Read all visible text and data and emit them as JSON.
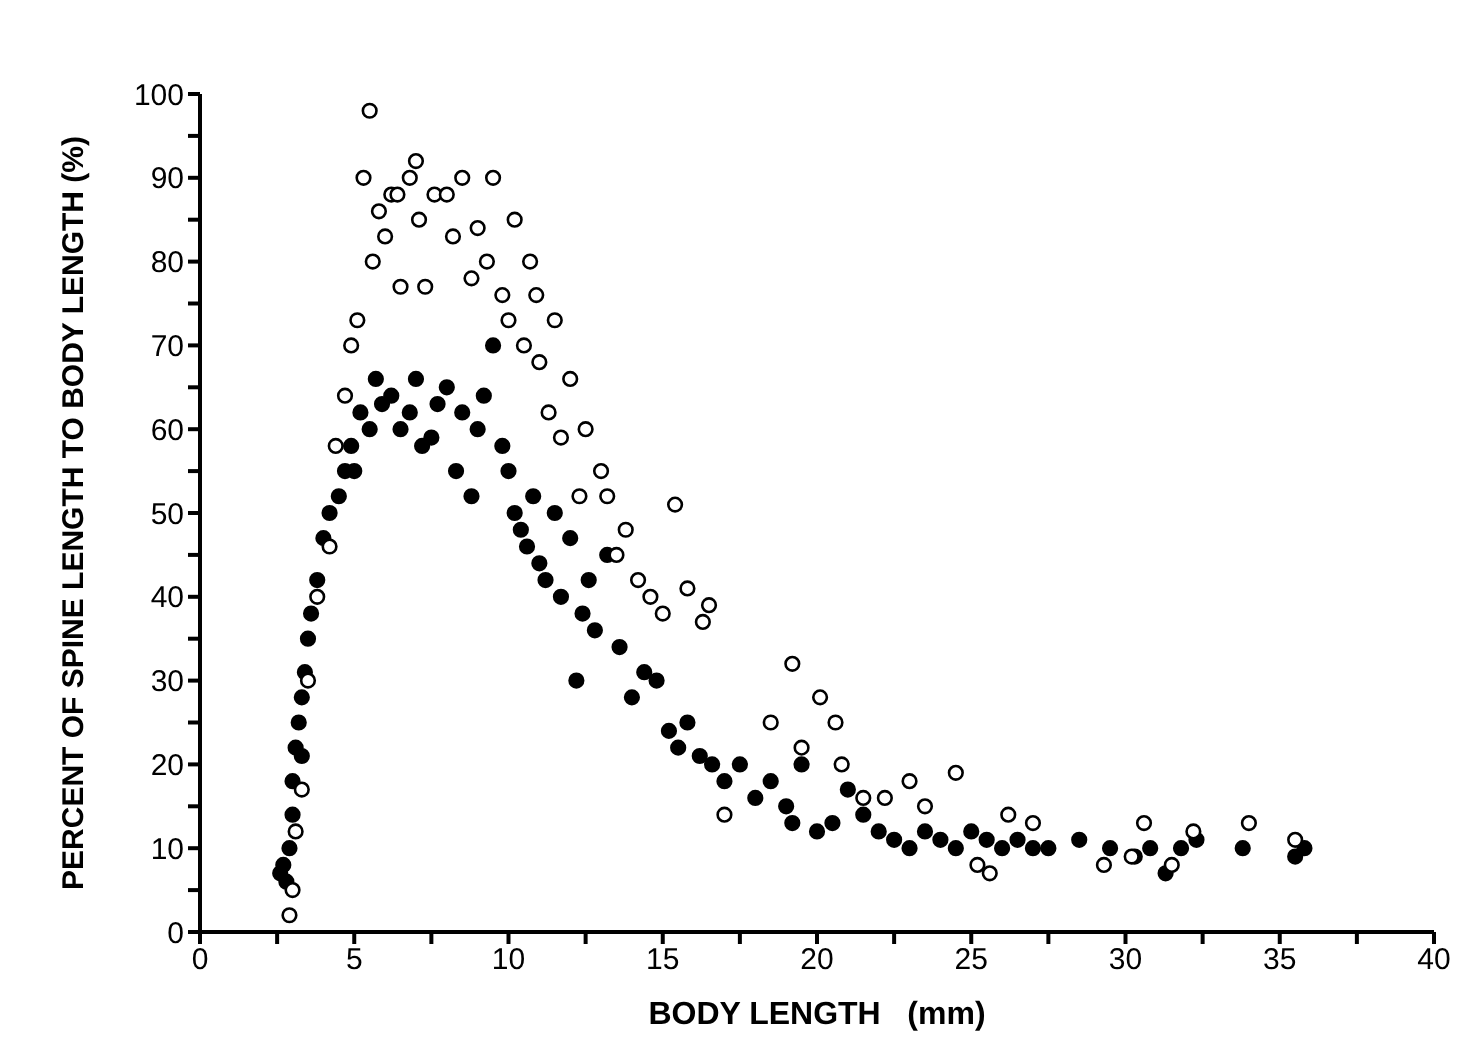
{
  "chart_data": {
    "type": "scatter",
    "xlabel": "BODY LENGTH   (mm)",
    "ylabel": "PERCENT OF SPINE LENGTH TO BODY LENGTH (%)",
    "xlim": [
      0,
      40
    ],
    "ylim": [
      0,
      100
    ],
    "xticks": [
      0,
      {
        "value": 2.5,
        "label": null
      },
      5,
      {
        "value": 7.5,
        "label": null
      },
      10,
      {
        "value": 12.5,
        "label": null
      },
      15,
      {
        "value": 17.5,
        "label": null
      },
      20,
      {
        "value": 22.5,
        "label": null
      },
      25,
      {
        "value": 27.5,
        "label": null
      },
      30,
      {
        "value": 32.5,
        "label": null
      },
      35,
      {
        "value": 37.5,
        "label": null
      },
      40
    ],
    "yticks": [
      0,
      {
        "value": 5,
        "label": null
      },
      10,
      {
        "value": 15,
        "label": null
      },
      20,
      {
        "value": 25,
        "label": null
      },
      30,
      {
        "value": 35,
        "label": null
      },
      40,
      {
        "value": 45,
        "label": null
      },
      50,
      {
        "value": 55,
        "label": null
      },
      60,
      {
        "value": 65,
        "label": null
      },
      70,
      {
        "value": 75,
        "label": null
      },
      80,
      {
        "value": 85,
        "label": null
      },
      90,
      {
        "value": 95,
        "label": null
      },
      100
    ],
    "grid": false,
    "legend": false,
    "marker": "circle",
    "series": [
      {
        "color": "#000000",
        "x": [
          2.6,
          2.7,
          2.8,
          2.9,
          3.0,
          3.0,
          3.1,
          3.2,
          3.3,
          3.3,
          3.4,
          3.5,
          3.6,
          3.8,
          4.0,
          4.2,
          4.5,
          4.7,
          4.9,
          5.0,
          5.2,
          5.5,
          5.7,
          5.9,
          6.2,
          6.5,
          6.8,
          7.0,
          7.2,
          7.5,
          7.7,
          8.0,
          8.3,
          8.5,
          8.8,
          9.0,
          9.2,
          9.5,
          9.8,
          10.0,
          10.2,
          10.4,
          10.6,
          10.8,
          11.0,
          11.2,
          11.5,
          11.7,
          12.0,
          12.2,
          12.4,
          12.6,
          12.8,
          13.2,
          13.6,
          14.0,
          14.4,
          14.8,
          15.2,
          15.5,
          15.8,
          16.2,
          16.6,
          17.0,
          17.5,
          18.0,
          18.5,
          19.0,
          19.2,
          19.5,
          20.0,
          20.5,
          21.0,
          21.5,
          22,
          22.5,
          23,
          23.5,
          24,
          24.5,
          25,
          25.5,
          26,
          26.5,
          27,
          27.5,
          28.5,
          29.5,
          30.3,
          30.8,
          31.3,
          31.8,
          32.3,
          33.8,
          35.5,
          35.8
        ],
        "values": [
          7,
          8,
          6,
          10,
          14,
          18,
          22,
          25,
          21,
          28,
          31,
          35,
          38,
          42,
          47,
          50,
          52,
          55,
          58,
          55,
          62,
          60,
          66,
          63,
          64,
          60,
          62,
          66,
          58,
          59,
          63,
          65,
          55,
          62,
          52,
          60,
          64,
          70,
          58,
          55,
          50,
          48,
          46,
          52,
          44,
          42,
          50,
          40,
          47,
          30,
          38,
          42,
          36,
          45,
          34,
          28,
          31,
          30,
          24,
          22,
          25,
          21,
          20,
          18,
          20,
          16,
          18,
          15,
          13,
          20,
          12,
          13,
          17,
          14,
          12,
          11,
          10,
          12,
          11,
          10,
          12,
          11,
          10,
          11,
          10,
          10,
          11,
          10,
          9,
          10,
          7,
          10,
          11,
          10,
          9,
          10
        ]
      },
      {
        "color": "#ffffff",
        "x": [
          2.9,
          3.0,
          3.1,
          3.3,
          3.5,
          3.8,
          4.2,
          4.4,
          4.7,
          4.9,
          5.1,
          5.3,
          5.5,
          5.6,
          5.8,
          6.0,
          6.2,
          6.4,
          6.5,
          6.8,
          7.0,
          7.1,
          7.3,
          7.6,
          8.0,
          8.2,
          8.5,
          8.8,
          9.0,
          9.3,
          9.5,
          9.8,
          10.0,
          10.2,
          10.5,
          10.7,
          10.9,
          11.0,
          11.3,
          11.5,
          11.7,
          12.0,
          12.3,
          12.5,
          13.0,
          13.2,
          13.5,
          13.8,
          14.2,
          14.6,
          15.0,
          15.4,
          15.8,
          16.3,
          16.5,
          17.0,
          18.5,
          19.2,
          19.5,
          20.1,
          20.6,
          20.8,
          21.5,
          22.2,
          23,
          23.5,
          24.5,
          25.2,
          25.6,
          26.2,
          27,
          29.3,
          30.2,
          30.6,
          31.5,
          32.2,
          34,
          35.5
        ],
        "values": [
          2,
          5,
          12,
          17,
          30,
          40,
          46,
          58,
          64,
          70,
          73,
          90,
          98,
          80,
          86,
          83,
          88,
          88,
          77,
          90,
          92,
          85,
          77,
          88,
          88,
          83,
          90,
          78,
          84,
          80,
          90,
          76,
          73,
          85,
          70,
          80,
          76,
          68,
          62,
          73,
          59,
          66,
          52,
          60,
          55,
          52,
          45,
          48,
          42,
          40,
          38,
          51,
          41,
          37,
          39,
          14,
          25,
          32,
          22,
          28,
          25,
          20,
          16,
          16,
          18,
          15,
          19,
          8,
          7,
          14,
          13,
          8,
          9,
          13,
          8,
          12,
          13,
          11
        ]
      }
    ]
  }
}
